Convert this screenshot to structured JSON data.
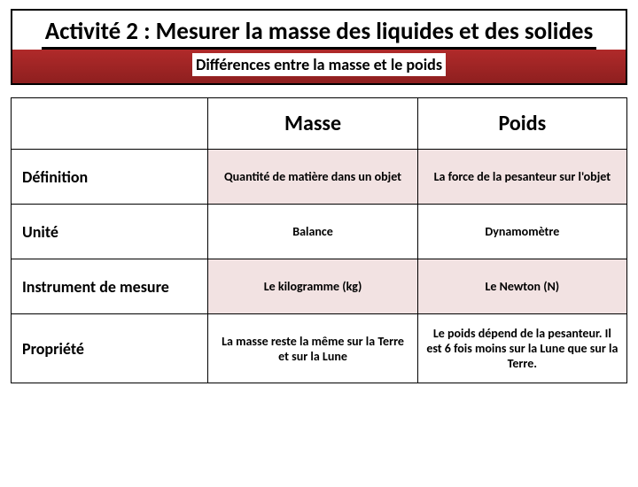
{
  "header": {
    "title": "Activité 2 : Mesurer la masse des liquides et des solides",
    "subtitle": "Différences entre la masse et le poids"
  },
  "table": {
    "columns": [
      "",
      "Masse",
      "Poids"
    ],
    "rows": [
      {
        "label": "Définition",
        "masse": "Quantité de matière dans un objet",
        "poids": "La force de la pesanteur sur l'objet"
      },
      {
        "label": "Unité",
        "masse": "Balance",
        "poids": "Dynamomètre"
      },
      {
        "label": "Instrument de mesure",
        "masse": "Le kilogramme (kg)",
        "poids": "Le Newton (N)"
      },
      {
        "label": "Propriété",
        "masse": "La masse reste la même sur la Terre et sur la Lune",
        "poids": "Le poids dépend de la pesanteur. Il est 6 fois moins sur la Lune que sur la Terre."
      }
    ],
    "styling": {
      "header_fontsize": 24,
      "rowlabel_fontsize": 18,
      "cell_fontsize": 14,
      "border_color": "#000000",
      "odd_row_bg": "#f2e2e2",
      "even_row_bg": "#ffffff",
      "header_bg": "#ffffff"
    }
  },
  "colors": {
    "page_bg": "#ffffff",
    "banner_gradient_top": "#b02a2a",
    "banner_gradient_bottom": "#8e1f1f",
    "text": "#000000"
  },
  "typography": {
    "title_fontsize": 27,
    "title_weight": 700,
    "subtitle_fontsize": 18,
    "subtitle_weight": 700,
    "font_family": "Calibri, Arial, sans-serif"
  }
}
